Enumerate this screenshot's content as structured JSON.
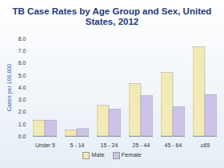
{
  "chart_data": {
    "type": "bar",
    "title": "TB Case Rates by Age Group and Sex, United States, 2012",
    "y_label": "Cases per 100,000",
    "categories": [
      "Under 5",
      "5 - 14",
      "15 - 24",
      "25 - 44",
      "45 - 64",
      "≥65"
    ],
    "series": [
      {
        "name": "Male",
        "color": "#f2eab4",
        "values": [
          1.3,
          0.5,
          2.5,
          4.3,
          5.2,
          7.3
        ]
      },
      {
        "name": "Female",
        "color": "#cbc4e8",
        "values": [
          1.3,
          0.6,
          2.2,
          3.3,
          2.4,
          3.4
        ]
      }
    ],
    "ylim": [
      0,
      8
    ],
    "yticks": [
      {
        "value": 0,
        "label": "0.0"
      },
      {
        "value": 1,
        "label": "1.0"
      },
      {
        "value": 2,
        "label": "2.0"
      },
      {
        "value": 3,
        "label": "3.0"
      },
      {
        "value": 4,
        "label": "4.0"
      },
      {
        "value": 5,
        "label": "5.0"
      },
      {
        "value": 6,
        "label": "6.0"
      },
      {
        "value": 7,
        "label": "7.0"
      },
      {
        "value": 8,
        "label": "8.0"
      }
    ],
    "legend": "bottom",
    "grid": false
  }
}
